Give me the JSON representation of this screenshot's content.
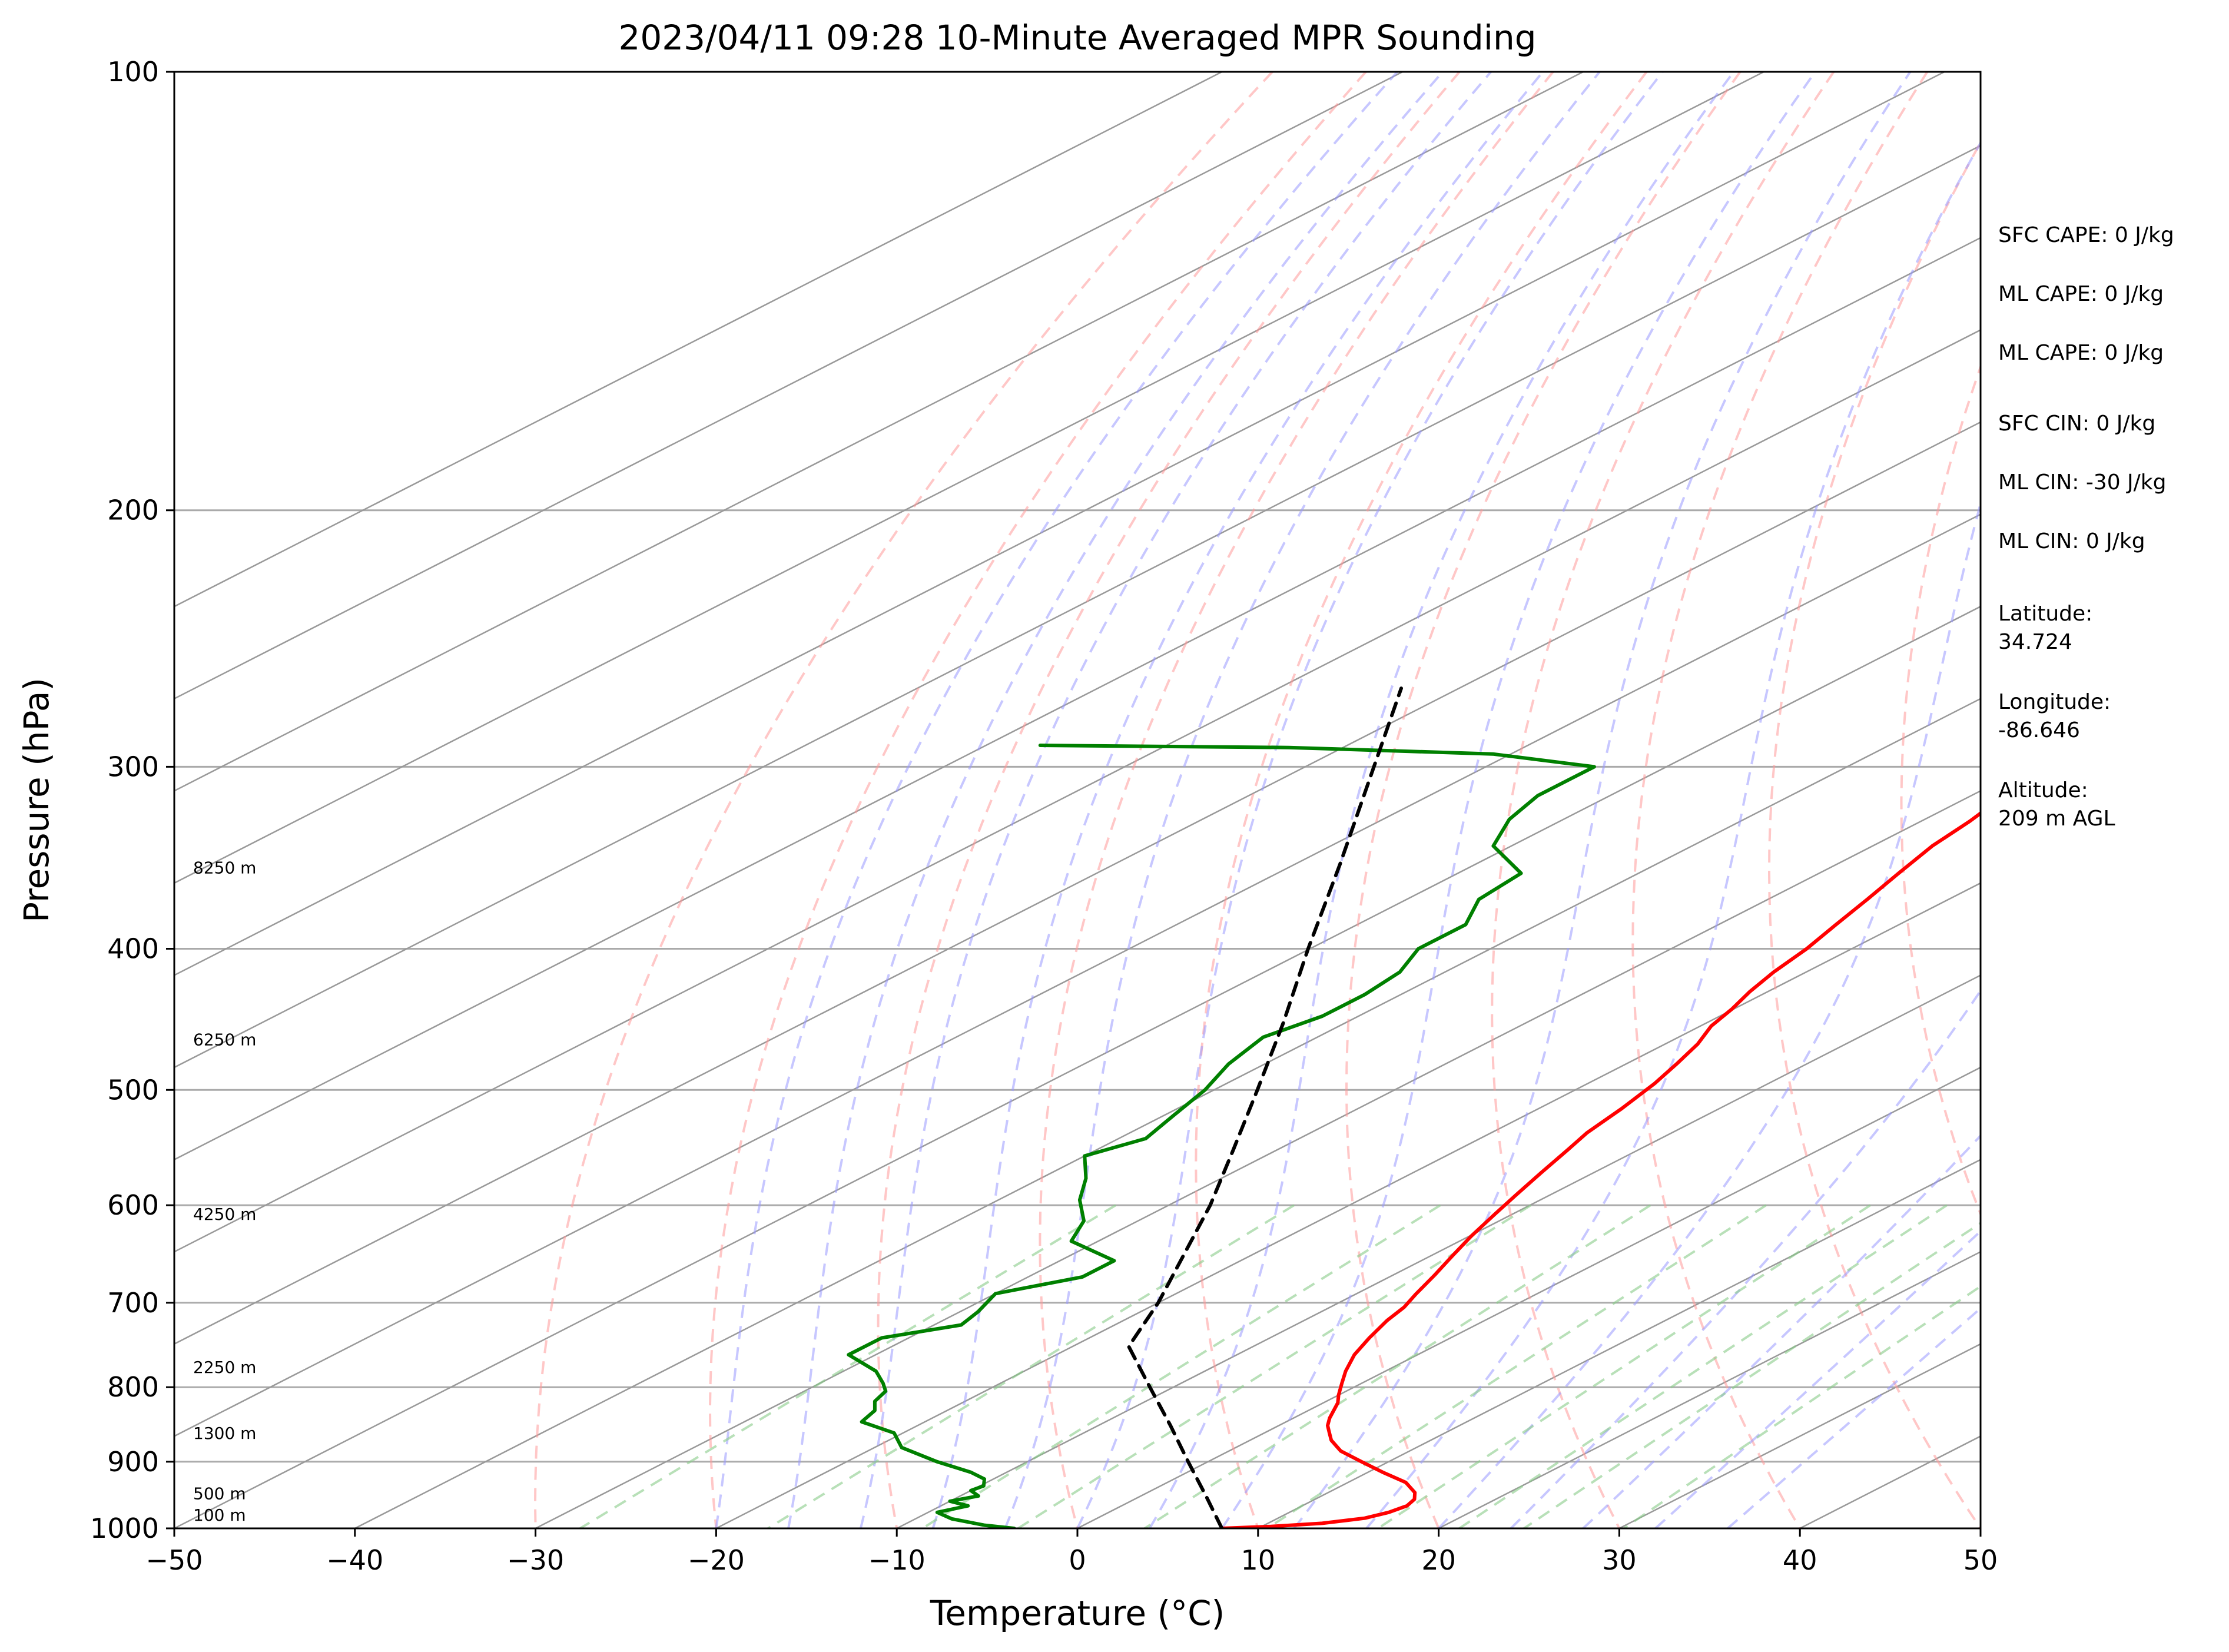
{
  "chart_data": {
    "type": "line",
    "title": "2023/04/11 09:28 10-Minute Averaged MPR Sounding",
    "xlabel": "Temperature (°C)",
    "ylabel": "Pressure (hPa)",
    "xlim": [
      -50,
      50
    ],
    "ylim": [
      1000,
      100
    ],
    "y_scale": "log",
    "x_ticks": [
      -50,
      -40,
      -30,
      -20,
      -10,
      0,
      10,
      20,
      30,
      40,
      50
    ],
    "x_tick_labels": [
      "−50",
      "−40",
      "−30",
      "−20",
      "−10",
      "0",
      "10",
      "20",
      "30",
      "40",
      "50"
    ],
    "y_ticks": [
      100,
      200,
      300,
      400,
      500,
      600,
      700,
      800,
      900,
      1000
    ],
    "y_tick_labels": [
      "100",
      "200",
      "300",
      "400",
      "500",
      "600",
      "700",
      "800",
      "900",
      "1000"
    ],
    "grid": true,
    "colors": {
      "temperature": "#ff0000",
      "dewpoint": "#008000",
      "parcel": "#000000",
      "dry_adiabats": "#ff9999",
      "moist_adiabats": "#9999ff",
      "mixing_ratio": "#88cc88",
      "isotherms": "#999999",
      "isobars": "#aaaaaa"
    },
    "series": [
      {
        "key": "temperature",
        "pressure": [
          1000,
          997,
          992,
          984,
          975,
          965,
          955,
          945,
          930,
          915,
          900,
          885,
          870,
          860,
          850,
          840,
          820,
          810,
          795,
          780,
          760,
          740,
          720,
          705,
          690,
          670,
          650,
          630,
          610,
          590,
          570,
          550,
          535,
          515,
          495,
          480,
          465,
          452,
          440,
          428,
          415,
          400,
          385,
          370,
          355,
          340,
          327,
          315,
          303,
          292,
          280,
          270,
          262
        ],
        "values": [
          8.0,
          10.5,
          13.0,
          14.8,
          15.5,
          15.8,
          15.5,
          14.8,
          13.2,
          10.8,
          8.5,
          6.2,
          4.5,
          3.6,
          2.7,
          2.0,
          0.8,
          0.0,
          -1.1,
          -2.2,
          -3.5,
          -4.5,
          -5.4,
          -5.9,
          -6.7,
          -7.7,
          -8.8,
          -9.9,
          -10.9,
          -11.9,
          -12.9,
          -13.9,
          -14.7,
          -15.4,
          -16.3,
          -17.2,
          -18.2,
          -19.4,
          -20.1,
          -21.0,
          -21.8,
          -22.5,
          -23.5,
          -24.5,
          -25.6,
          -26.7,
          -27.3,
          -28.1,
          -29.0,
          -29.6,
          -30.3,
          -31.2,
          -32.0
        ]
      },
      {
        "key": "dewpoint",
        "pressure": [
          1000,
          995,
          985,
          975,
          965,
          958,
          950,
          942,
          935,
          925,
          915,
          900,
          880,
          860,
          845,
          830,
          818,
          805,
          795,
          780,
          760,
          740,
          725,
          710,
          690,
          672,
          655,
          635,
          615,
          595,
          575,
          555,
          540,
          520,
          500,
          480,
          460,
          445,
          430,
          415,
          400,
          385,
          370,
          355,
          340,
          326,
          314,
          303,
          300,
          294,
          291,
          290
        ],
        "values": [
          -3.5,
          -5.5,
          -8.0,
          -9.5,
          -8.5,
          -10.0,
          -9.0,
          -10.0,
          -9.8,
          -10.5,
          -12.0,
          -15.0,
          -18.5,
          -20.5,
          -23.5,
          -24.0,
          -25.0,
          -25.5,
          -26.5,
          -28.2,
          -31.5,
          -31.5,
          -28.5,
          -29.0,
          -30.0,
          -27.0,
          -27.0,
          -31.5,
          -33.0,
          -35.5,
          -37.5,
          -40.0,
          -38.5,
          -39.5,
          -40.5,
          -42.0,
          -43.0,
          -42.0,
          -42.0,
          -42.5,
          -44.0,
          -44.0,
          -46.0,
          -46.5,
          -51.0,
          -53.0,
          -54.0,
          -54.0,
          -54.0,
          -61.0,
          -73.0,
          -87.0
        ]
      },
      {
        "key": "parcel",
        "pressure": [
          1000,
          950,
          900,
          850,
          800,
          750,
          700,
          650,
          600,
          550,
          500,
          450,
          400,
          350,
          300,
          265
        ],
        "values": [
          8.0,
          3.6,
          -1.1,
          -6.0,
          -11.3,
          -16.9,
          -20.0,
          -23.7,
          -27.7,
          -32.4,
          -37.6,
          -43.4,
          -50.1,
          -57.5,
          -66.2,
          -73.2
        ]
      }
    ],
    "altitude_labels": [
      {
        "text": "100 m",
        "pressure": 988
      },
      {
        "text": "500 m",
        "pressure": 955
      },
      {
        "text": "1300 m",
        "pressure": 868
      },
      {
        "text": "2250 m",
        "pressure": 782
      },
      {
        "text": "4250 m",
        "pressure": 614
      },
      {
        "text": "6250 m",
        "pressure": 466
      },
      {
        "text": "8250 m",
        "pressure": 355
      }
    ],
    "info_panel": [
      "SFC CAPE: 0 J/kg",
      "ML CAPE: 0 J/kg",
      "ML CAPE: 0 J/kg",
      "SFC CIN: 0 J/kg",
      "ML CIN: -30 J/kg",
      "ML CIN: 0 J/kg",
      "Latitude:",
      "34.724",
      "Longitude:",
      "-86.646",
      "Altitude:",
      "209 m AGL"
    ]
  }
}
